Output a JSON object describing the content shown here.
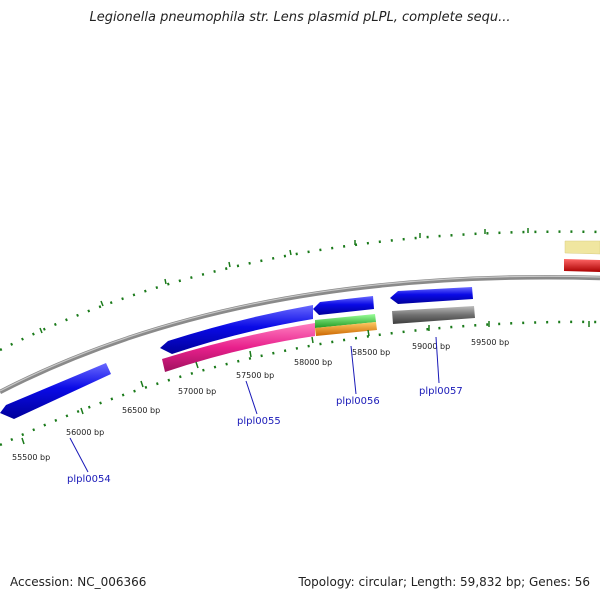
{
  "title": "Legionella pneumophila str. Lens plasmid pLPL, complete sequ...",
  "accession": "Accession: NC_006366",
  "topology": "Topology: circular; Length: 59,832 bp; Genes: 56",
  "bp_labels": [
    "55500 bp",
    "56000 bp",
    "56500 bp",
    "57000 bp",
    "57500 bp",
    "58000 bp",
    "58500 bp",
    "59000 bp",
    "59500 bp"
  ],
  "gene_labels": [
    "plpl0054",
    "plpl0055",
    "plpl0056",
    "plpl0057"
  ],
  "colors": {
    "backbone": "#8a8a8a",
    "tick": "#1a7a1a",
    "cds": "#0a0ae0",
    "gene": "#e8208c",
    "rna_green": "#33cc33",
    "rna_orange": "#ff9900",
    "misc_gray": "#707070",
    "feature_yellow": "#f0e6a0",
    "feature_red": "#ee1111",
    "label": "#1a1ab8"
  }
}
